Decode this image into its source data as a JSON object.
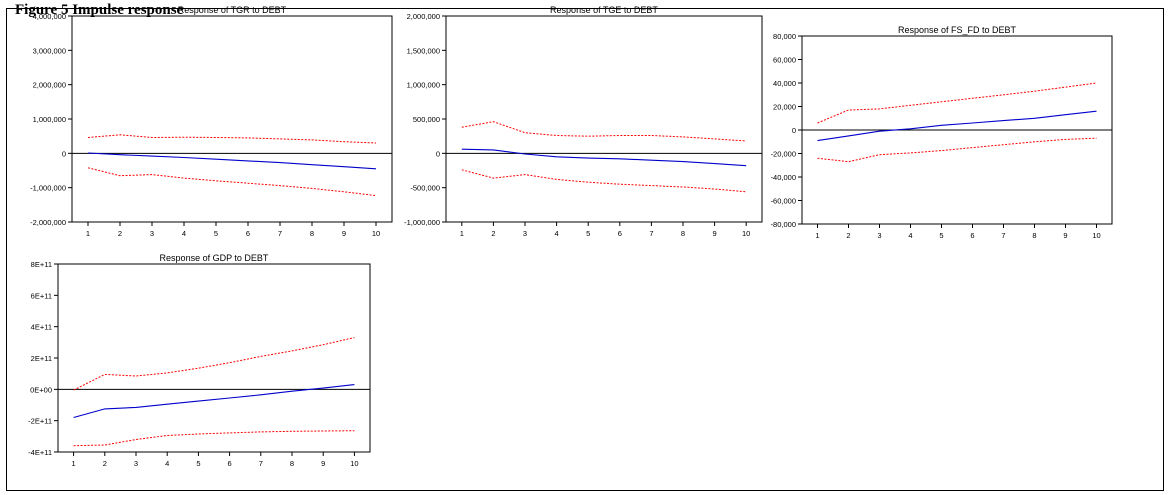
{
  "figure": {
    "title": "Figure 5 Impulse response"
  },
  "colors": {
    "response": "#0000cc",
    "band": "#ff0000",
    "axis": "#000000",
    "zero": "#000000"
  },
  "chart_data": [
    {
      "type": "line",
      "title": "Response of TGR to DEBT",
      "x": [
        1,
        2,
        3,
        4,
        5,
        6,
        7,
        8,
        9,
        10
      ],
      "xticks": [
        "1",
        "2",
        "3",
        "4",
        "5",
        "6",
        "7",
        "8",
        "9",
        "10"
      ],
      "ylim": [
        -2000000,
        4000000
      ],
      "yticks": [
        -2000000,
        -1000000,
        0,
        1000000,
        2000000,
        3000000,
        4000000
      ],
      "yticklabels": [
        "-2,000,000",
        "-1,000,000",
        "0",
        "1,000,000",
        "2,000,000",
        "3,000,000",
        "4,000,000"
      ],
      "series": [
        {
          "role": "response",
          "values": [
            10000,
            -40000,
            -80000,
            -120000,
            -170000,
            -220000,
            -270000,
            -330000,
            -390000,
            -450000
          ]
        },
        {
          "role": "upper",
          "values": [
            460000,
            540000,
            460000,
            470000,
            460000,
            450000,
            420000,
            390000,
            340000,
            300000
          ]
        },
        {
          "role": "lower",
          "values": [
            -420000,
            -650000,
            -620000,
            -720000,
            -800000,
            -870000,
            -940000,
            -1020000,
            -1120000,
            -1230000
          ]
        }
      ]
    },
    {
      "type": "line",
      "title": "Response of TGE to DEBT",
      "x": [
        1,
        2,
        3,
        4,
        5,
        6,
        7,
        8,
        9,
        10
      ],
      "xticks": [
        "1",
        "2",
        "3",
        "4",
        "5",
        "6",
        "7",
        "8",
        "9",
        "10"
      ],
      "ylim": [
        -1000000,
        2000000
      ],
      "yticks": [
        -1000000,
        -500000,
        0,
        500000,
        1000000,
        1500000,
        2000000
      ],
      "yticklabels": [
        "-1,000,000",
        "-500,000",
        "0",
        "500,000",
        "1,000,000",
        "1,500,000",
        "2,000,000"
      ],
      "series": [
        {
          "role": "response",
          "values": [
            60000,
            50000,
            -10000,
            -50000,
            -70000,
            -80000,
            -100000,
            -120000,
            -150000,
            -180000
          ]
        },
        {
          "role": "upper",
          "values": [
            380000,
            460000,
            300000,
            260000,
            250000,
            260000,
            260000,
            240000,
            210000,
            180000
          ]
        },
        {
          "role": "lower",
          "values": [
            -240000,
            -360000,
            -310000,
            -380000,
            -420000,
            -450000,
            -470000,
            -490000,
            -520000,
            -560000
          ]
        }
      ]
    },
    {
      "type": "line",
      "title": "Response of FS_FD to DEBT",
      "x": [
        1,
        2,
        3,
        4,
        5,
        6,
        7,
        8,
        9,
        10
      ],
      "xticks": [
        "1",
        "2",
        "3",
        "4",
        "5",
        "6",
        "7",
        "8",
        "9",
        "10"
      ],
      "ylim": [
        -80000,
        80000
      ],
      "yticks": [
        -80000,
        -60000,
        -40000,
        -20000,
        0,
        20000,
        40000,
        60000,
        80000
      ],
      "yticklabels": [
        "-80,000",
        "-60,000",
        "-40,000",
        "-20,000",
        "0",
        "20,000",
        "40,000",
        "60,000",
        "80,000"
      ],
      "series": [
        {
          "role": "response",
          "values": [
            -9000,
            -5000,
            -1000,
            1000,
            4000,
            6000,
            8000,
            10000,
            13000,
            16000
          ]
        },
        {
          "role": "upper",
          "values": [
            6000,
            17000,
            18000,
            21000,
            24000,
            27000,
            30000,
            33000,
            36500,
            40000
          ]
        },
        {
          "role": "lower",
          "values": [
            -24000,
            -27000,
            -21000,
            -19500,
            -17500,
            -15000,
            -12500,
            -10000,
            -8000,
            -7000
          ]
        }
      ]
    },
    {
      "type": "line",
      "title": "Response of GDP to DEBT",
      "x": [
        1,
        2,
        3,
        4,
        5,
        6,
        7,
        8,
        9,
        10
      ],
      "xticks": [
        "1",
        "2",
        "3",
        "4",
        "5",
        "6",
        "7",
        "8",
        "9",
        "10"
      ],
      "ylim": [
        -400000000000,
        800000000000
      ],
      "yticks": [
        -400000000000,
        -200000000000,
        0,
        200000000000,
        400000000000,
        600000000000,
        800000000000
      ],
      "yticklabels": [
        "-4E+11",
        "-2E+11",
        "0E+00",
        "2E+11",
        "4E+11",
        "6E+11",
        "8E+11"
      ],
      "series": [
        {
          "role": "response",
          "values": [
            -180000000000,
            -125000000000,
            -115000000000,
            -95000000000,
            -75000000000,
            -55000000000,
            -35000000000,
            -12000000000,
            8000000000,
            30000000000
          ]
        },
        {
          "role": "upper",
          "values": [
            -5000000000,
            95000000000,
            85000000000,
            105000000000,
            135000000000,
            170000000000,
            210000000000,
            245000000000,
            285000000000,
            330000000000
          ]
        },
        {
          "role": "lower",
          "values": [
            -360000000000,
            -355000000000,
            -320000000000,
            -295000000000,
            -285000000000,
            -278000000000,
            -272000000000,
            -268000000000,
            -266000000000,
            -264000000000
          ]
        }
      ]
    }
  ]
}
